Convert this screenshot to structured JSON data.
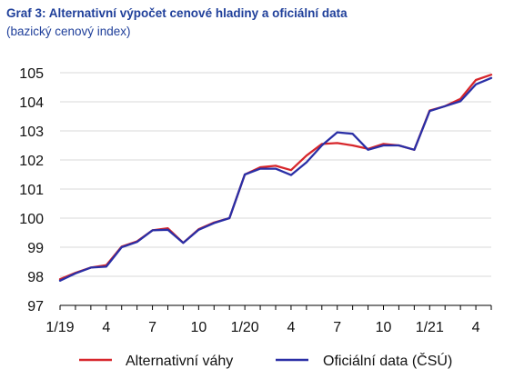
{
  "chart_data": {
    "type": "line",
    "title": "Graf 3: Alternativní výpočet cenové hladiny a oficiální data",
    "subtitle": "(bazický cenový index)",
    "xlabel": "",
    "ylabel": "",
    "ylim": [
      97,
      105
    ],
    "yticks": [
      "97",
      "98",
      "99",
      "100",
      "101",
      "102",
      "103",
      "104",
      "105"
    ],
    "x": [
      "2019-01",
      "2019-02",
      "2019-03",
      "2019-04",
      "2019-05",
      "2019-06",
      "2019-07",
      "2019-08",
      "2019-09",
      "2019-10",
      "2019-11",
      "2019-12",
      "2020-01",
      "2020-02",
      "2020-03",
      "2020-04",
      "2020-05",
      "2020-06",
      "2020-07",
      "2020-08",
      "2020-09",
      "2020-10",
      "2020-11",
      "2020-12",
      "2021-01",
      "2021-02",
      "2021-03",
      "2021-04",
      "2021-05"
    ],
    "xticklabels": [
      {
        "x": "2019-01",
        "label": "1/19"
      },
      {
        "x": "2019-04",
        "label": "4"
      },
      {
        "x": "2019-07",
        "label": "7"
      },
      {
        "x": "2019-10",
        "label": "10"
      },
      {
        "x": "2020-01",
        "label": "1/20"
      },
      {
        "x": "2020-04",
        "label": "4"
      },
      {
        "x": "2020-07",
        "label": "7"
      },
      {
        "x": "2020-10",
        "label": "10"
      },
      {
        "x": "2021-01",
        "label": "1/21"
      },
      {
        "x": "2021-04",
        "label": "4"
      }
    ],
    "grid": "horizontal",
    "legend_position": "bottom",
    "series": [
      {
        "name": "Alternativní váhy",
        "color": "#d7262b",
        "values": [
          97.9,
          98.12,
          98.3,
          98.38,
          99.02,
          99.2,
          99.58,
          99.65,
          99.15,
          99.62,
          99.85,
          100.0,
          101.5,
          101.75,
          101.8,
          101.65,
          102.15,
          102.55,
          102.58,
          102.5,
          102.38,
          102.55,
          102.5,
          102.35,
          103.7,
          103.85,
          104.1,
          104.75,
          104.93
        ]
      },
      {
        "name": "Oficiální data (ČSÚ)",
        "color": "#2a2fa6",
        "values": [
          97.85,
          98.1,
          98.3,
          98.33,
          99.0,
          99.18,
          99.58,
          99.6,
          99.15,
          99.6,
          99.83,
          100.0,
          101.5,
          101.7,
          101.7,
          101.48,
          101.92,
          102.5,
          102.95,
          102.9,
          102.35,
          102.5,
          102.5,
          102.35,
          103.68,
          103.85,
          104.02,
          104.6,
          104.82
        ]
      }
    ]
  }
}
